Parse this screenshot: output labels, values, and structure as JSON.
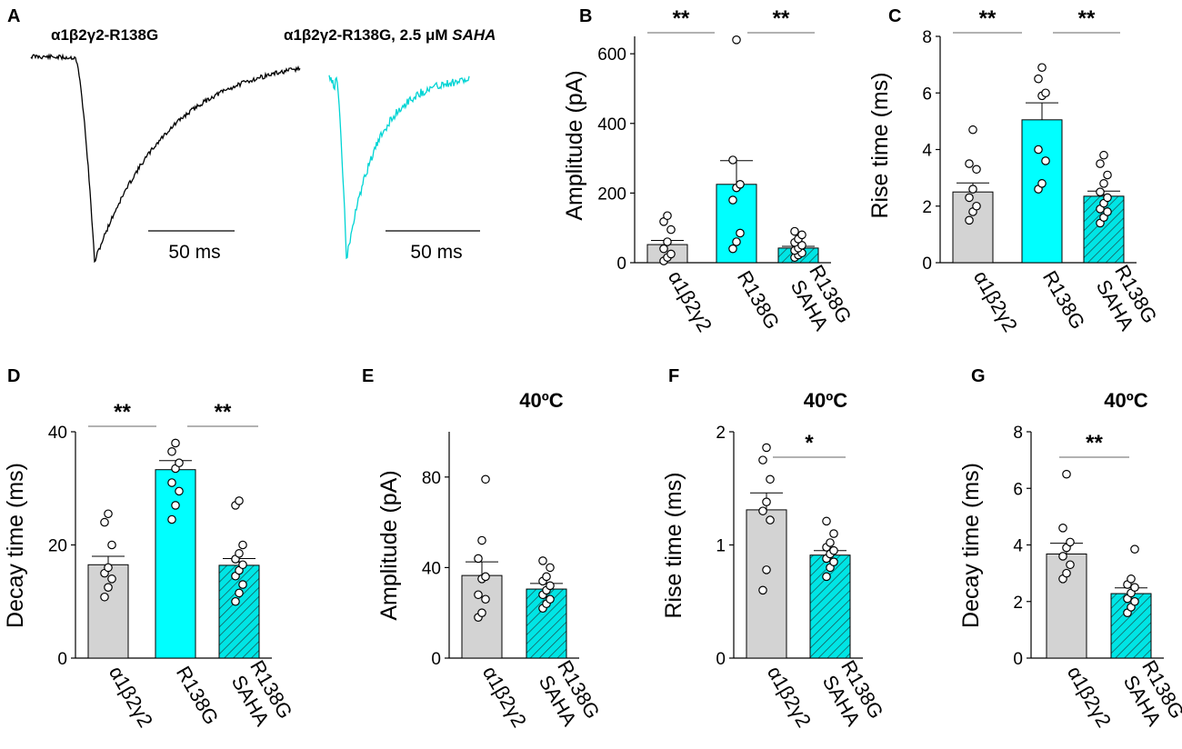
{
  "colors": {
    "control_fill": "#d3d3d3",
    "mutant_fill": "#00ffff",
    "saha_fill": "#00e5e5",
    "hatch": "#1a4a4a",
    "ink": "#000000",
    "trace_control": "#000000",
    "trace_saha": "#00d4d4"
  },
  "panel_a": {
    "letter": "A",
    "trace_left_title": "α1β2γ2-R138G",
    "trace_right_title_main": "α1β2γ2-R138G, 2.5 μM ",
    "trace_right_title_italic": "SAHA",
    "scale_label_left": "50 ms",
    "scale_label_right": "50 ms"
  },
  "chart_data": [
    {
      "id": "B",
      "letter": "B",
      "type": "bar",
      "title": "",
      "ylabel": "Amplitude (pA)",
      "ylim": [
        0,
        650
      ],
      "yticks": [
        0,
        200,
        400,
        600
      ],
      "categories": [
        "α1β2γ2",
        "R138G",
        "R138G SAHA"
      ],
      "category_lines": [
        [
          "α1β2γ2"
        ],
        [
          "R138G"
        ],
        [
          "R138G",
          "SAHA"
        ]
      ],
      "fills": [
        "control",
        "mutant",
        "saha"
      ],
      "values": [
        52,
        225,
        42
      ],
      "sem": [
        12,
        68,
        5
      ],
      "points": [
        [
          5,
          15,
          25,
          40,
          60,
          95,
          118,
          135
        ],
        [
          40,
          60,
          85,
          180,
          215,
          225,
          295,
          640
        ],
        [
          15,
          22,
          28,
          35,
          42,
          50,
          58,
          68,
          80,
          90
        ]
      ],
      "significance": [
        {
          "from": 0,
          "to": 1,
          "label": "**"
        },
        {
          "from": 1,
          "to": 2,
          "label": "**"
        }
      ]
    },
    {
      "id": "C",
      "letter": "C",
      "type": "bar",
      "title": "",
      "ylabel": "Rise time (ms)",
      "ylim": [
        0,
        8
      ],
      "yticks": [
        0,
        2,
        4,
        6,
        8
      ],
      "categories": [
        "α1β2γ2",
        "R138G",
        "R138G SAHA"
      ],
      "category_lines": [
        [
          "α1β2γ2"
        ],
        [
          "R138G"
        ],
        [
          "R138G",
          "SAHA"
        ]
      ],
      "fills": [
        "control",
        "mutant",
        "saha"
      ],
      "values": [
        2.5,
        5.05,
        2.35
      ],
      "sem": [
        0.32,
        0.6,
        0.18
      ],
      "points": [
        [
          1.5,
          1.8,
          2.0,
          2.3,
          2.6,
          3.3,
          3.5,
          4.7
        ],
        [
          2.6,
          2.8,
          3.6,
          4.0,
          5.9,
          6.0,
          6.5,
          6.9
        ],
        [
          1.4,
          1.6,
          1.8,
          1.9,
          2.1,
          2.3,
          2.5,
          2.8,
          3.1,
          3.5,
          3.8
        ]
      ],
      "significance": [
        {
          "from": 0,
          "to": 1,
          "label": "**"
        },
        {
          "from": 1,
          "to": 2,
          "label": "**"
        }
      ]
    },
    {
      "id": "D",
      "letter": "D",
      "type": "bar",
      "title": "",
      "ylabel": "Decay time (ms)",
      "ylim": [
        0,
        40
      ],
      "yticks": [
        0,
        20,
        40
      ],
      "categories": [
        "α1β2γ2",
        "R138G",
        "R138G SAHA"
      ],
      "category_lines": [
        [
          "α1β2γ2"
        ],
        [
          "R138G"
        ],
        [
          "R138G",
          "SAHA"
        ]
      ],
      "fills": [
        "control",
        "mutant",
        "saha"
      ],
      "values": [
        16.5,
        33.3,
        16.4
      ],
      "sem": [
        1.5,
        1.6,
        1.2
      ],
      "points": [
        [
          10.8,
          12.5,
          14,
          15,
          16,
          20,
          24,
          25.5
        ],
        [
          24.5,
          27,
          29.5,
          31,
          33.5,
          34.5,
          36.5,
          38
        ],
        [
          10,
          11.5,
          13,
          14.5,
          15.5,
          16.5,
          17.5,
          18.5,
          20,
          27,
          27.8
        ]
      ],
      "significance": [
        {
          "from": 0,
          "to": 1,
          "label": "**"
        },
        {
          "from": 1,
          "to": 2,
          "label": "**"
        }
      ]
    },
    {
      "id": "E",
      "letter": "E",
      "type": "bar",
      "title": "40ºC",
      "ylabel": "Amplitude (pA)",
      "ylim": [
        0,
        100
      ],
      "yticks": [
        0,
        40,
        80
      ],
      "categories": [
        "α1β2γ2",
        "R138G SAHA"
      ],
      "category_lines": [
        [
          "α1β2γ2"
        ],
        [
          "R138G",
          "SAHA"
        ]
      ],
      "fills": [
        "control",
        "saha"
      ],
      "values": [
        36.5,
        30.5
      ],
      "sem": [
        6,
        2.5
      ],
      "points": [
        [
          18,
          20,
          26,
          28,
          35,
          36,
          44,
          52,
          79
        ],
        [
          22,
          24,
          26,
          28,
          30,
          32,
          34,
          36,
          40,
          43
        ]
      ],
      "significance": []
    },
    {
      "id": "F",
      "letter": "F",
      "type": "bar",
      "title": "40ºC",
      "ylabel": "Rise time (ms)",
      "ylim": [
        0,
        2
      ],
      "yticks": [
        0,
        1,
        2
      ],
      "categories": [
        "α1β2γ2",
        "R138G SAHA"
      ],
      "category_lines": [
        [
          "α1β2γ2"
        ],
        [
          "R138G",
          "SAHA"
        ]
      ],
      "fills": [
        "control",
        "saha"
      ],
      "values": [
        1.31,
        0.91
      ],
      "sem": [
        0.15,
        0.04
      ],
      "points": [
        [
          0.6,
          0.78,
          1.22,
          1.3,
          1.38,
          1.58,
          1.75,
          1.86
        ],
        [
          0.72,
          0.8,
          0.85,
          0.88,
          0.92,
          0.95,
          0.98,
          1.02,
          1.1,
          1.21
        ]
      ],
      "significance": [
        {
          "from": 0,
          "to": 1,
          "label": "*"
        }
      ]
    },
    {
      "id": "G",
      "letter": "G",
      "type": "bar",
      "title": "40ºC",
      "ylabel": "Decay time (ms)",
      "ylim": [
        0,
        8
      ],
      "yticks": [
        0,
        2,
        4,
        6,
        8
      ],
      "categories": [
        "α1β2γ2",
        "R138G SAHA"
      ],
      "category_lines": [
        [
          "α1β2γ2"
        ],
        [
          "R138G",
          "SAHA"
        ]
      ],
      "fills": [
        "control",
        "saha"
      ],
      "values": [
        3.68,
        2.28
      ],
      "sem": [
        0.38,
        0.2
      ],
      "points": [
        [
          2.8,
          3.0,
          3.3,
          3.6,
          3.9,
          4.1,
          4.6,
          6.5
        ],
        [
          1.6,
          1.8,
          2.0,
          2.1,
          2.3,
          2.5,
          2.6,
          2.8,
          3.85
        ]
      ],
      "significance": [
        {
          "from": 0,
          "to": 1,
          "label": "**"
        }
      ]
    }
  ]
}
